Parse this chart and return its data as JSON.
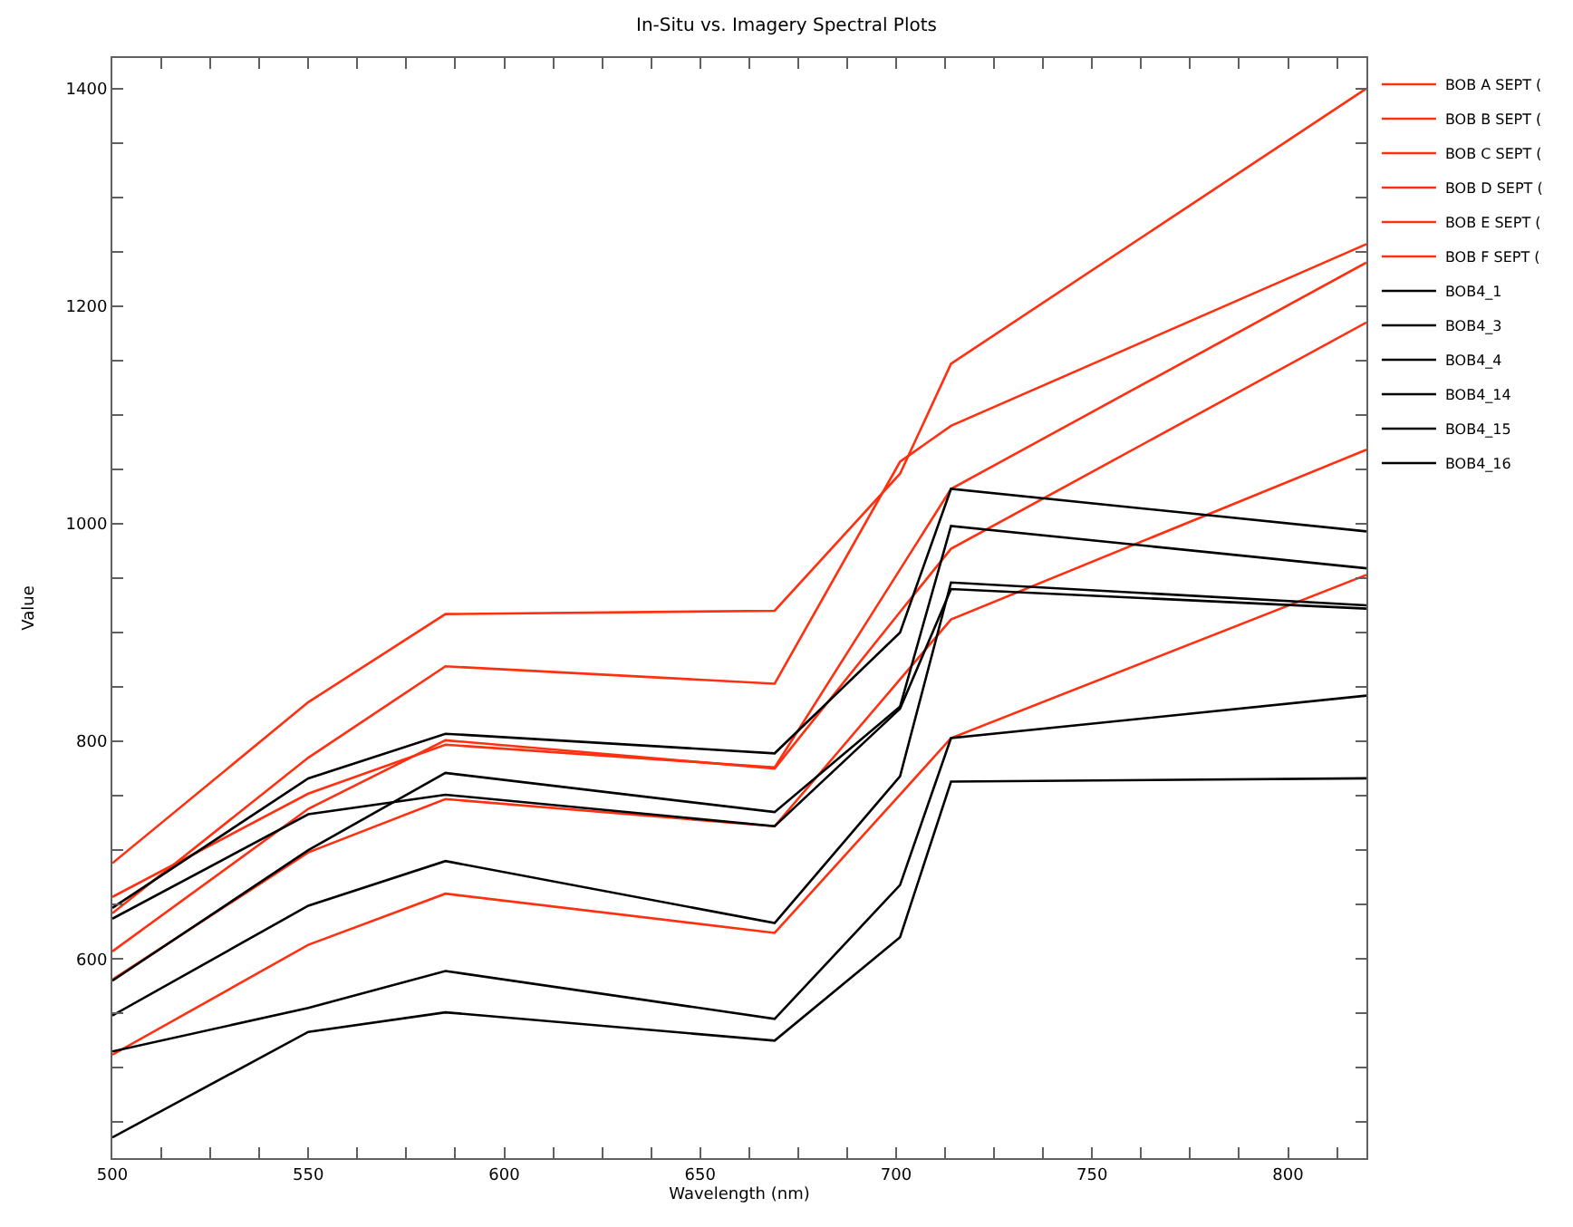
{
  "chart_data": {
    "type": "line",
    "title": "In-Situ vs. Imagery Spectral Plots",
    "xlabel": "Wavelength (nm)",
    "ylabel": "Value",
    "x": [
      500,
      550,
      585,
      669,
      701,
      714,
      820
    ],
    "xlim": [
      500,
      820
    ],
    "xticks": [
      500,
      {
        "value": 512.5,
        "label": null
      },
      {
        "value": 525,
        "label": null
      },
      {
        "value": 537.5,
        "label": null
      },
      550,
      {
        "value": 562.5,
        "label": null
      },
      {
        "value": 575,
        "label": null
      },
      {
        "value": 587.5,
        "label": null
      },
      600,
      {
        "value": 612.5,
        "label": null
      },
      {
        "value": 625,
        "label": null
      },
      {
        "value": 637.5,
        "label": null
      },
      650,
      {
        "value": 662.5,
        "label": null
      },
      {
        "value": 675,
        "label": null
      },
      {
        "value": 687.5,
        "label": null
      },
      700,
      {
        "value": 712.5,
        "label": null
      },
      {
        "value": 725,
        "label": null
      },
      {
        "value": 737.5,
        "label": null
      },
      750,
      {
        "value": 762.5,
        "label": null
      },
      {
        "value": 775,
        "label": null
      },
      {
        "value": 787.5,
        "label": null
      },
      800,
      {
        "value": 812.5,
        "label": null
      }
    ],
    "ylim": [
      417,
      1428
    ],
    "yticks": [
      {
        "value": 450,
        "label": null
      },
      {
        "value": 500,
        "label": null
      },
      {
        "value": 550,
        "label": null
      },
      600,
      {
        "value": 650,
        "label": null
      },
      {
        "value": 700,
        "label": null
      },
      {
        "value": 750,
        "label": null
      },
      800,
      {
        "value": 850,
        "label": null
      },
      {
        "value": 900,
        "label": null
      },
      {
        "value": 950,
        "label": null
      },
      1000,
      {
        "value": 1050,
        "label": null
      },
      {
        "value": 1100,
        "label": null
      },
      {
        "value": 1150,
        "label": null
      },
      1200,
      {
        "value": 1250,
        "label": null
      },
      {
        "value": 1300,
        "label": null
      },
      {
        "value": 1350,
        "label": null
      },
      1400
    ],
    "grid": false,
    "legend": "top right",
    "marker": "none",
    "line_style": "solid",
    "series": [
      {
        "name": "BOB A SEPT (",
        "color": "#ff3010",
        "values": [
          688,
          836,
          917,
          920,
          1046,
          1147,
          1400
        ]
      },
      {
        "name": "BOB B SEPT (",
        "color": "#ff3010",
        "values": [
          642,
          785,
          869,
          853,
          1057,
          1090,
          1257
        ]
      },
      {
        "name": "BOB C SEPT (",
        "color": "#ff3010",
        "values": [
          657,
          752,
          797,
          776,
          958,
          1032,
          1240
        ]
      },
      {
        "name": "BOB D SEPT (",
        "color": "#ff3010",
        "values": [
          607,
          738,
          801,
          775,
          919,
          977,
          1185
        ]
      },
      {
        "name": "BOB E SEPT (",
        "color": "#ff3010",
        "values": [
          581,
          698,
          747,
          722,
          857,
          912,
          1068
        ]
      },
      {
        "name": "BOB F SEPT (",
        "color": "#ff3010",
        "values": [
          512,
          613,
          660,
          624,
          751,
          803,
          953
        ]
      },
      {
        "name": "BOB4_1",
        "color": "#000000",
        "values": [
          647,
          766,
          807,
          789,
          900,
          1032,
          993
        ]
      },
      {
        "name": "BOB4_3",
        "color": "#000000",
        "values": [
          637,
          733,
          751,
          722,
          830,
          940,
          922
        ]
      },
      {
        "name": "BOB4_4",
        "color": "#000000",
        "values": [
          580,
          700,
          771,
          735,
          832,
          998,
          959
        ]
      },
      {
        "name": "BOB4_14",
        "color": "#000000",
        "values": [
          548,
          649,
          690,
          633,
          768,
          946,
          925
        ]
      },
      {
        "name": "BOB4_15",
        "color": "#000000",
        "values": [
          515,
          555,
          589,
          545,
          668,
          803,
          842
        ]
      },
      {
        "name": "BOB4_16",
        "color": "#000000",
        "values": [
          436,
          533,
          551,
          525,
          620,
          763,
          766
        ]
      }
    ]
  }
}
